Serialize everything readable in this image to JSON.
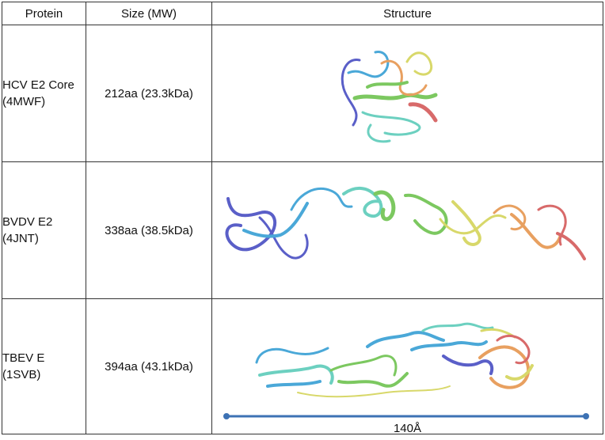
{
  "headers": {
    "protein": "Protein",
    "size": "Size (MW)",
    "structure": "Structure"
  },
  "rows": [
    {
      "protein_line1": "HCV E2 Core",
      "protein_line2": "(4MWF)",
      "size": "212aa (23.3kDa)"
    },
    {
      "protein_line1": "BVDV E2",
      "protein_line2": "(4JNT)",
      "size": "338aa (38.5kDa)"
    },
    {
      "protein_line1": "TBEV E",
      "protein_line2": "(1SVB)",
      "size": "394aa (43.1kDa)"
    }
  ],
  "scale_bar": {
    "label": "140Å",
    "color": "#3d72b4"
  },
  "ribbon_colors": [
    "#5a5fc8",
    "#4aa8d8",
    "#6cd0c0",
    "#7cc860",
    "#d8d86a",
    "#e8a060",
    "#d86a6a"
  ]
}
